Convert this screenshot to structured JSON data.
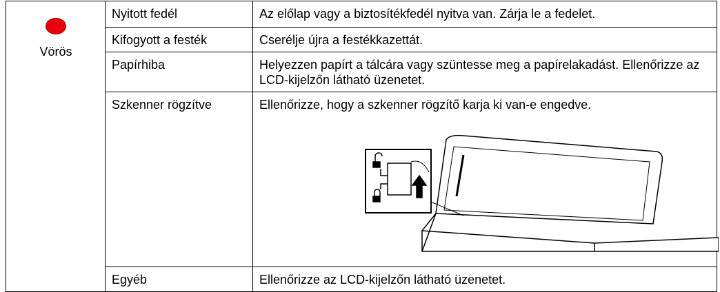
{
  "status": {
    "label": "Vörös"
  },
  "table": {
    "rows": [
      [
        "Nyitott fedél",
        "Az előlap vagy a biztosítékfedél nyitva van. Zárja le a fedelet."
      ],
      [
        "Kifogyott a festék",
        "Cserélje újra a festékkazettát."
      ],
      [
        "Papírhiba",
        "Helyezzen papírt a tálcára vagy szüntesse meg a papírelakadást. Ellenőrizze az LCD-kijelzőn látható üzenetet."
      ],
      [
        "Szkenner rögzítve",
        "Ellenőrizze, hogy a szkenner rögzítő karja ki van-e engedve."
      ],
      [
        "Egyéb",
        "Ellenőrizze az LCD-kijelzőn látható üzenetet."
      ]
    ]
  }
}
